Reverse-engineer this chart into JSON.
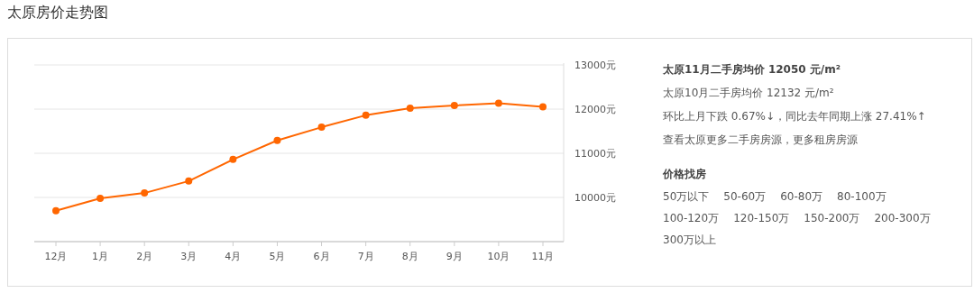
{
  "chart_data": [
    {
      "type": "line",
      "title": "太原房价走势图",
      "categories": [
        "12月",
        "1月",
        "2月",
        "3月",
        "4月",
        "5月",
        "6月",
        "7月",
        "8月",
        "9月",
        "10月",
        "11月"
      ],
      "series": [
        {
          "color": "#ff6600",
          "values": [
            9700,
            9980,
            10100,
            10370,
            10860,
            11290,
            11590,
            11860,
            12020,
            12080,
            12132,
            12050
          ]
        }
      ],
      "ylim": [
        9000,
        13000
      ],
      "yticks": [
        {
          "value": 10000,
          "label": "10000元"
        },
        {
          "value": 11000,
          "label": "11000元"
        },
        {
          "value": 12000,
          "label": "12000元"
        },
        {
          "value": 13000,
          "label": "13000元"
        }
      ],
      "grid": "y",
      "marker": "circle",
      "line_style": "solid"
    },
    {
      "type": "other",
      "annotations": [
        "太原11月二手房均价 12050 元/m²",
        "太原10月二手房均价 12132 元/m²",
        "环比上月下跌 0.67%↓，同比去年同期上涨 27.41%↑",
        "查看太原更多二手房房源，更多租房房源",
        "价格找房",
        "50万以下",
        "50-60万",
        "60-80万",
        "80-100万",
        "100-120万",
        "120-150万",
        "150-200万",
        "200-300万",
        "300万以上"
      ]
    }
  ]
}
